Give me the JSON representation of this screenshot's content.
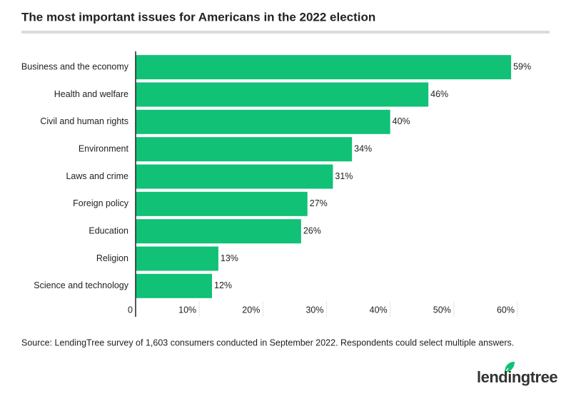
{
  "chart_data": {
    "type": "hbar",
    "title": "The most important issues for Americans in the 2022 election",
    "categories": [
      "Business and the economy",
      "Health and welfare",
      "Civil and human rights",
      "Environment",
      "Laws and crime",
      "Foreign policy",
      "Education",
      "Religion",
      "Science and technology"
    ],
    "values": [
      59,
      46,
      40,
      34,
      31,
      27,
      26,
      13,
      12
    ],
    "value_labels": [
      "59%",
      "46%",
      "40%",
      "34%",
      "31%",
      "27%",
      "26%",
      "13%",
      "12%"
    ],
    "color": "#10c176",
    "xlim": [
      0,
      60
    ],
    "xticks": [
      0,
      {
        "value": 10,
        "label": "10%"
      },
      {
        "value": 20,
        "label": "20%"
      },
      {
        "value": 30,
        "label": "30%"
      },
      {
        "value": 40,
        "label": "40%"
      },
      {
        "value": 50,
        "label": "50%"
      },
      {
        "value": 60,
        "label": "60%"
      }
    ],
    "source": "Source: LendingTree survey of 1,603 consumers conducted in September 2022. Respondents could select multiple answers.",
    "logo": "lendingtree"
  }
}
